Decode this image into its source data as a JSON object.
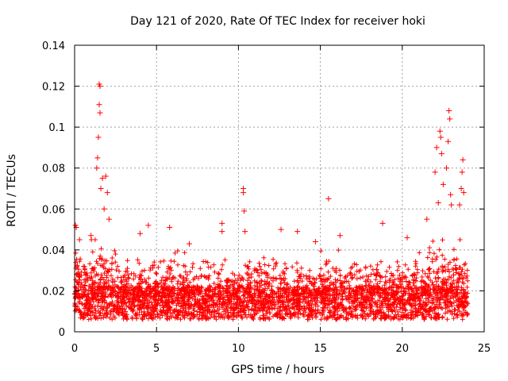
{
  "chart_data": {
    "type": "scatter",
    "title": "Day 121 of 2020, Rate Of TEC Index for receiver hoki",
    "xlabel": "GPS time / hours",
    "ylabel": "ROTI / TECUs",
    "xlim": [
      0,
      25
    ],
    "ylim": [
      0,
      0.14
    ],
    "xticks": [
      0,
      5,
      10,
      15,
      20,
      25
    ],
    "xtick_labels": [
      "0",
      "5",
      "10",
      "15",
      "20",
      "25"
    ],
    "yticks": [
      0,
      0.02,
      0.04,
      0.06,
      0.08,
      0.1,
      0.12,
      0.14
    ],
    "ytick_labels": [
      "0",
      "0.02",
      "0.04",
      "0.06",
      "0.08",
      "0.1",
      "0.12",
      "0.14"
    ],
    "grid": true,
    "marker": "+",
    "color": "#ff0000",
    "series": [
      {
        "name": "ROTI",
        "description_of_bulk": "dense band of points between ~0.005 and ~0.035 across 0-24 h",
        "notable_points": [
          {
            "x": 0.05,
            "y": 0.052
          },
          {
            "x": 0.1,
            "y": 0.051
          },
          {
            "x": 0.3,
            "y": 0.045
          },
          {
            "x": 1.0,
            "y": 0.047
          },
          {
            "x": 1.35,
            "y": 0.08
          },
          {
            "x": 1.4,
            "y": 0.085
          },
          {
            "x": 1.45,
            "y": 0.095
          },
          {
            "x": 1.5,
            "y": 0.121
          },
          {
            "x": 1.55,
            "y": 0.12
          },
          {
            "x": 1.5,
            "y": 0.111
          },
          {
            "x": 1.55,
            "y": 0.107
          },
          {
            "x": 1.6,
            "y": 0.07
          },
          {
            "x": 1.7,
            "y": 0.075
          },
          {
            "x": 1.8,
            "y": 0.06
          },
          {
            "x": 1.9,
            "y": 0.076
          },
          {
            "x": 2.0,
            "y": 0.068
          },
          {
            "x": 2.1,
            "y": 0.055
          },
          {
            "x": 4.0,
            "y": 0.048
          },
          {
            "x": 4.5,
            "y": 0.052
          },
          {
            "x": 5.8,
            "y": 0.051
          },
          {
            "x": 7.0,
            "y": 0.043
          },
          {
            "x": 9.0,
            "y": 0.049
          },
          {
            "x": 9.0,
            "y": 0.053
          },
          {
            "x": 10.3,
            "y": 0.07
          },
          {
            "x": 10.3,
            "y": 0.068
          },
          {
            "x": 10.35,
            "y": 0.059
          },
          {
            "x": 10.4,
            "y": 0.049
          },
          {
            "x": 12.6,
            "y": 0.05
          },
          {
            "x": 13.6,
            "y": 0.049
          },
          {
            "x": 14.7,
            "y": 0.044
          },
          {
            "x": 15.5,
            "y": 0.065
          },
          {
            "x": 16.2,
            "y": 0.047
          },
          {
            "x": 18.8,
            "y": 0.053
          },
          {
            "x": 20.3,
            "y": 0.046
          },
          {
            "x": 21.5,
            "y": 0.055
          },
          {
            "x": 22.0,
            "y": 0.078
          },
          {
            "x": 22.1,
            "y": 0.09
          },
          {
            "x": 22.3,
            "y": 0.098
          },
          {
            "x": 22.35,
            "y": 0.095
          },
          {
            "x": 22.4,
            "y": 0.087
          },
          {
            "x": 22.2,
            "y": 0.063
          },
          {
            "x": 22.5,
            "y": 0.072
          },
          {
            "x": 22.7,
            "y": 0.08
          },
          {
            "x": 22.8,
            "y": 0.093
          },
          {
            "x": 22.85,
            "y": 0.108
          },
          {
            "x": 22.9,
            "y": 0.104
          },
          {
            "x": 22.95,
            "y": 0.067
          },
          {
            "x": 23.0,
            "y": 0.062
          },
          {
            "x": 23.5,
            "y": 0.062
          },
          {
            "x": 23.6,
            "y": 0.07
          },
          {
            "x": 23.65,
            "y": 0.078
          },
          {
            "x": 23.7,
            "y": 0.084
          },
          {
            "x": 23.75,
            "y": 0.068
          }
        ]
      }
    ]
  }
}
